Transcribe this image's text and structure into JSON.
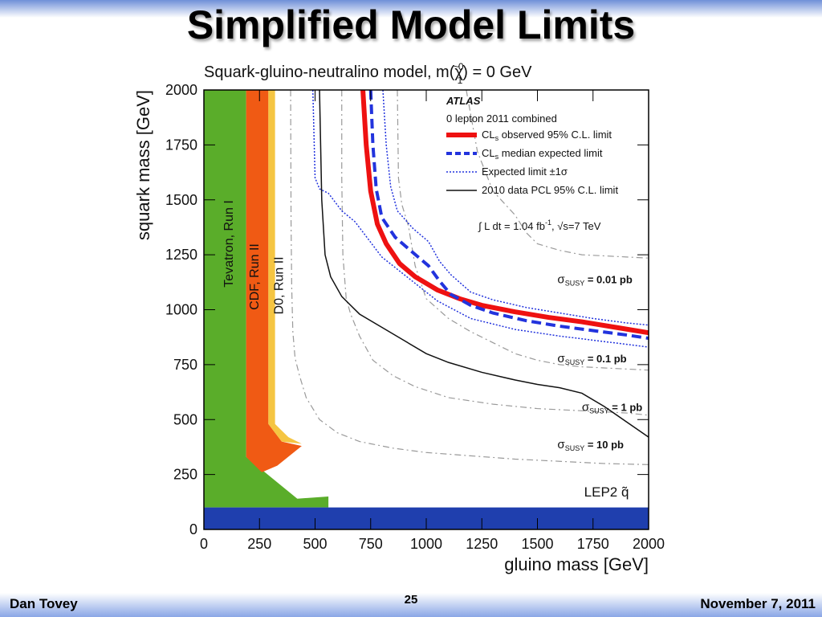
{
  "slide": {
    "title": "Simplified Model Limits",
    "footer_left": "Dan Tovey",
    "page_number": "25",
    "footer_right": "November 7, 2011"
  },
  "chart_data": {
    "type": "line",
    "title": "Squark-gluino-neutralino model,  m(χ̃₁⁰) = 0 GeV",
    "title_parts": {
      "main": "Squark-gluino-neutralino model,  m(",
      "symbol": "χ",
      "tilde": "~",
      "sup": "0",
      "sub": "1",
      "tail": ") = 0 GeV"
    },
    "xlabel": "gluino mass [GeV]",
    "ylabel": "squark mass [GeV]",
    "xlim": [
      0,
      2000
    ],
    "ylim": [
      0,
      2000
    ],
    "x_ticks": [
      "0",
      "250",
      "500",
      "750",
      "1000",
      "1250",
      "1500",
      "1750",
      "2000"
    ],
    "y_ticks": [
      "0",
      "250",
      "500",
      "750",
      "1000",
      "1250",
      "1500",
      "1750",
      "2000"
    ],
    "x_tick_values": [
      0,
      250,
      500,
      750,
      1000,
      1250,
      1500,
      1750,
      2000
    ],
    "y_tick_values": [
      0,
      250,
      500,
      750,
      1000,
      1250,
      1500,
      1750,
      2000
    ],
    "legend": {
      "placement": "top-right",
      "header": "ATLAS",
      "subheader": "0 lepton 2011 combined",
      "entries": [
        {
          "main": "CL",
          "sub": "s",
          "rest": " observed 95% C.L. limit"
        },
        {
          "main": "CL",
          "sub": "s",
          "rest": " median expected limit"
        },
        {
          "main": "Expected limit ±1",
          "sub": "",
          "rest": "σ"
        },
        {
          "main": "2010 data PCL 95% C.L. limit",
          "sub": "",
          "rest": ""
        }
      ],
      "luminosity": {
        "pre": "∫ L dt = 1.04 fb",
        "sup": "-1",
        "post": ", √s=7 TeV"
      }
    },
    "excluded_regions": [
      {
        "label": "Tevatron, Run I",
        "color": "#5aad2a",
        "polygon": [
          [
            0,
            0
          ],
          [
            0,
            2000
          ],
          [
            190,
            2000
          ],
          [
            190,
            330
          ],
          [
            420,
            140
          ],
          [
            560,
            150
          ],
          [
            560,
            100
          ],
          [
            0,
            100
          ]
        ]
      },
      {
        "label": "CDF, Run II",
        "color": "#f05a14",
        "polygon": [
          [
            190,
            330
          ],
          [
            190,
            2000
          ],
          [
            290,
            2000
          ],
          [
            290,
            480
          ],
          [
            350,
            400
          ],
          [
            440,
            380
          ],
          [
            330,
            290
          ],
          [
            260,
            260
          ]
        ]
      },
      {
        "label": "D0, Run II",
        "color": "#f5c542",
        "polygon": [
          [
            290,
            2000
          ],
          [
            320,
            2000
          ],
          [
            320,
            480
          ],
          [
            380,
            420
          ],
          [
            440,
            390
          ],
          [
            350,
            400
          ],
          [
            290,
            480
          ]
        ]
      },
      {
        "label": "LEP2  q̃",
        "color": "#1f3fae",
        "polygon": [
          [
            0,
            0
          ],
          [
            0,
            100
          ],
          [
            2000,
            100
          ],
          [
            2000,
            0
          ]
        ]
      }
    ],
    "series": [
      {
        "name": "CLs observed 95% C.L. limit",
        "color": "#ee1111",
        "style": "solid",
        "width": 6,
        "x": [
          715,
          730,
          750,
          780,
          820,
          880,
          950,
          1050,
          1150,
          1250,
          1400,
          1550,
          1700,
          1850,
          2000
        ],
        "y": [
          2000,
          1750,
          1540,
          1390,
          1300,
          1210,
          1150,
          1090,
          1050,
          1020,
          990,
          965,
          945,
          920,
          895
        ]
      },
      {
        "name": "CLs median expected limit",
        "color": "#2233dd",
        "style": "dashed",
        "width": 4,
        "x": [
          750,
          760,
          775,
          800,
          860,
          940,
          1010,
          1060,
          1110,
          1200,
          1300,
          1450,
          1600,
          1750,
          1900,
          2000
        ],
        "y": [
          2000,
          1750,
          1550,
          1420,
          1330,
          1260,
          1200,
          1130,
          1070,
          1020,
          985,
          950,
          925,
          905,
          885,
          870
        ]
      },
      {
        "name": "Expected limit +1σ",
        "color": "#2233dd",
        "style": "dotted",
        "width": 1.5,
        "x": [
          805,
          820,
          840,
          870,
          940,
          1010,
          1060,
          1110,
          1200,
          1300,
          1450,
          1600,
          1750,
          1900,
          2000
        ],
        "y": [
          2000,
          1750,
          1560,
          1450,
          1370,
          1310,
          1220,
          1160,
          1080,
          1045,
          1010,
          985,
          960,
          940,
          930
        ]
      },
      {
        "name": "Expected limit -1σ",
        "color": "#2233dd",
        "style": "dotted",
        "width": 1.5,
        "x": [
          490,
          500,
          520,
          560,
          620,
          680,
          740,
          800,
          850,
          950,
          1050,
          1200,
          1400,
          1600,
          1800,
          2000
        ],
        "y": [
          2000,
          1600,
          1550,
          1530,
          1450,
          1400,
          1320,
          1240,
          1200,
          1120,
          1040,
          960,
          910,
          880,
          855,
          830
        ]
      },
      {
        "name": "2010 data PCL 95% C.L. limit",
        "color": "#111111",
        "style": "solid",
        "width": 1.5,
        "x": [
          520,
          530,
          545,
          570,
          620,
          700,
          800,
          900,
          1000,
          1100,
          1250,
          1400,
          1500,
          1600,
          1700,
          1800,
          1900,
          2000
        ],
        "y": [
          2000,
          1500,
          1250,
          1150,
          1060,
          980,
          920,
          860,
          800,
          760,
          715,
          680,
          660,
          645,
          620,
          560,
          490,
          420
        ]
      }
    ],
    "contours": [
      {
        "label_pre": "σ",
        "label_sub": "SUSY",
        "label_post": " = 0.01 pb",
        "x": [
          1180,
          1230,
          1300,
          1400,
          1450,
          1500,
          1600,
          1700,
          1800,
          1900,
          2000
        ],
        "y": [
          2000,
          1720,
          1540,
          1430,
          1350,
          1300,
          1270,
          1250,
          1245,
          1240,
          1235
        ]
      },
      {
        "label_pre": "σ",
        "label_sub": "SUSY",
        "label_post": " = 0.1 pb",
        "x": [
          870,
          875,
          890,
          920,
          950,
          1000,
          1100,
          1200,
          1300,
          1400,
          1500,
          1600,
          1700,
          1800,
          1900,
          2000
        ],
        "y": [
          2000,
          1600,
          1480,
          1380,
          1200,
          1050,
          960,
          900,
          850,
          800,
          770,
          750,
          740,
          735,
          730,
          725
        ]
      },
      {
        "label_pre": "σ",
        "label_sub": "SUSY",
        "label_post": " = 1 pb",
        "x": [
          620,
          620,
          625,
          640,
          660,
          700,
          760,
          850,
          950,
          1100,
          1300,
          1500,
          1700,
          1800,
          1900,
          2000
        ],
        "y": [
          2000,
          1600,
          1250,
          1050,
          980,
          880,
          770,
          700,
          650,
          600,
          570,
          550,
          540,
          535,
          530,
          520
        ]
      },
      {
        "label_pre": "σ",
        "label_sub": "SUSY",
        "label_post": " = 10 pb",
        "x": [
          390,
          392,
          395,
          400,
          410,
          430,
          460,
          520,
          600,
          700,
          850,
          1000,
          1200,
          1400,
          1600,
          1800,
          2000
        ],
        "y": [
          2000,
          1400,
          1100,
          900,
          780,
          700,
          600,
          500,
          440,
          400,
          370,
          350,
          335,
          320,
          310,
          300,
          295
        ]
      }
    ]
  }
}
